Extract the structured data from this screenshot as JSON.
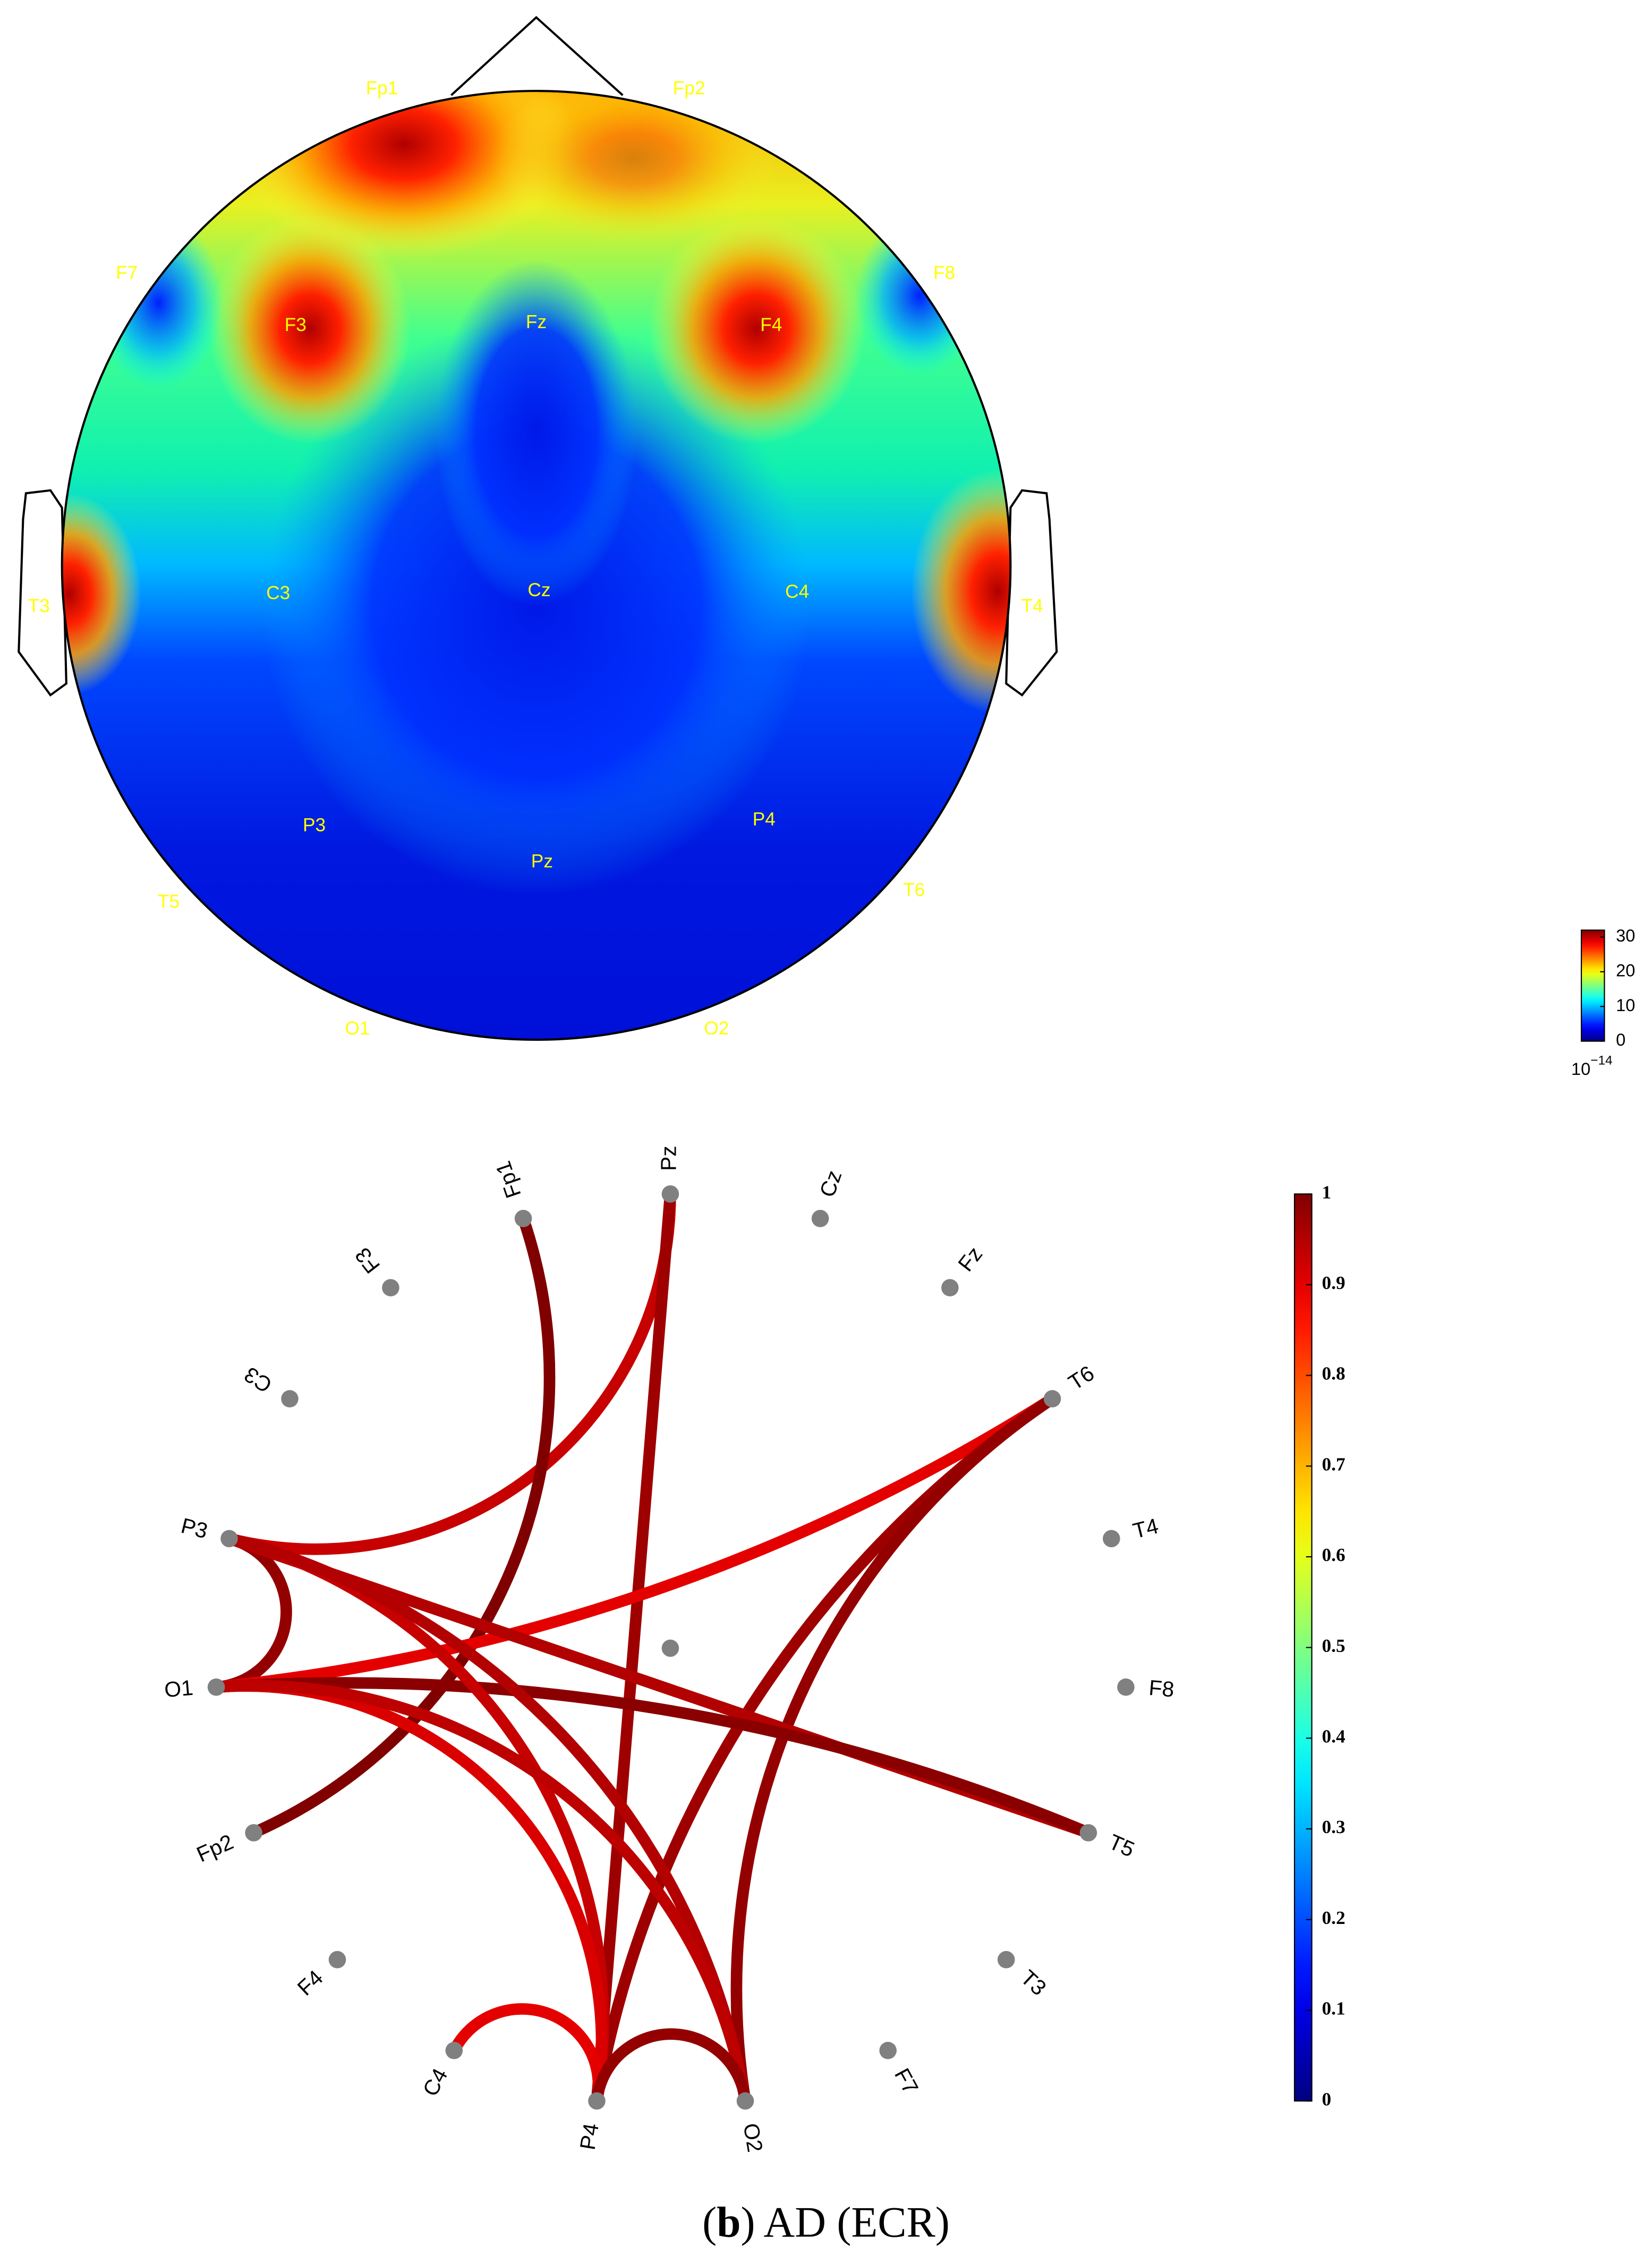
{
  "topomap": {
    "electrodes": [
      "Fp1",
      "Fp2",
      "F7",
      "F3",
      "Fz",
      "F4",
      "F8",
      "T3",
      "C3",
      "Cz",
      "C4",
      "T4",
      "P3",
      "Pz",
      "P4",
      "T5",
      "T6",
      "O1",
      "O2"
    ],
    "colorbar": {
      "lim": [
        0,
        32
      ],
      "ticks": [
        0,
        10,
        20,
        30
      ],
      "exponent_base": "10",
      "exponent_power": "−14"
    }
  },
  "connectivity": {
    "nodes": [
      "Fp1",
      "Pz",
      "Cz",
      "Fz",
      "T6",
      "T4",
      "F8",
      "T5",
      "T3",
      "F7",
      "O2",
      "P4",
      "C4",
      "F4",
      "Fp2",
      "O1",
      "P3",
      "C3",
      "F3"
    ],
    "edges": [
      {
        "from": "P3",
        "to": "Pz",
        "value": 0.93
      },
      {
        "from": "Fp1",
        "to": "Fp2",
        "value": 1.0
      },
      {
        "from": "Pz",
        "to": "P4",
        "value": 0.97
      },
      {
        "from": "P3",
        "to": "O1",
        "value": 0.98
      },
      {
        "from": "T6",
        "to": "O1",
        "value": 0.9
      },
      {
        "from": "T6",
        "to": "P4",
        "value": 0.97
      },
      {
        "from": "T6",
        "to": "O2",
        "value": 0.98
      },
      {
        "from": "P3",
        "to": "T5",
        "value": 0.95
      },
      {
        "from": "O1",
        "to": "T5",
        "value": 0.99
      },
      {
        "from": "P3",
        "to": "P4",
        "value": 0.93
      },
      {
        "from": "P3",
        "to": "O2",
        "value": 0.95
      },
      {
        "from": "O1",
        "to": "P4",
        "value": 0.91
      },
      {
        "from": "O1",
        "to": "O2",
        "value": 0.94
      },
      {
        "from": "C4",
        "to": "P4",
        "value": 0.9
      },
      {
        "from": "P4",
        "to": "O2",
        "value": 0.98
      }
    ],
    "colorbar": {
      "lim": [
        0,
        1
      ],
      "ticks": [
        0,
        0.1,
        0.2,
        0.3,
        0.4,
        0.5,
        0.6,
        0.7,
        0.8,
        0.9,
        1
      ]
    }
  },
  "caption": {
    "prefix": "(",
    "letter": "b",
    "text": ") AD (ECR)"
  }
}
